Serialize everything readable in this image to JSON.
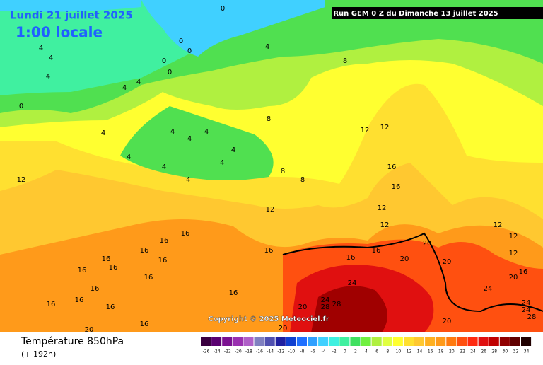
{
  "header": {
    "date": "Lundi 21 juillet 2025",
    "time": "1:00 locale",
    "run": "Run GEM 0 Z du Dimanche 13 juillet 2025"
  },
  "copyright": "Copyright © 2025 Meteociel.fr",
  "footer": {
    "title": "Température 850hPa",
    "lead": "(+ 192h)"
  },
  "contour_labels": [
    0,
    0,
    0,
    0,
    0,
    0,
    4,
    4,
    4,
    4,
    4,
    4,
    4,
    4,
    4,
    4,
    4,
    4,
    4,
    4,
    4,
    8,
    8,
    8,
    8,
    12,
    12,
    12,
    12,
    12,
    12,
    12,
    12,
    12,
    16,
    16,
    16,
    16,
    16,
    16,
    16,
    16,
    16,
    16,
    16,
    16,
    16,
    16,
    16,
    16,
    16,
    16,
    16,
    16,
    20,
    20,
    20,
    20,
    20,
    20,
    20,
    20,
    24,
    24,
    24,
    24,
    28,
    28,
    28,
    24
  ],
  "colorbar": {
    "ticks": [
      -26,
      -24,
      -22,
      -20,
      -18,
      -16,
      -14,
      -12,
      -10,
      -8,
      -6,
      -4,
      -2,
      0,
      2,
      4,
      6,
      8,
      10,
      12,
      14,
      16,
      18,
      20,
      22,
      24,
      26,
      28,
      30,
      32,
      34
    ],
    "colors": [
      "#3a0040",
      "#5a0070",
      "#7a1090",
      "#9a30b0",
      "#b060c8",
      "#8080c0",
      "#5050b0",
      "#2020a0",
      "#1040d0",
      "#2070ff",
      "#30a0ff",
      "#40d0ff",
      "#40f0e0",
      "#40f0a0",
      "#40e060",
      "#70f040",
      "#b0f040",
      "#e0ff40",
      "#ffff30",
      "#ffe030",
      "#ffc830",
      "#ffb020",
      "#ff9a1a",
      "#ff7a10",
      "#ff5010",
      "#ff2a10",
      "#e01010",
      "#c00000",
      "#900000",
      "#600000",
      "#200000"
    ]
  }
}
